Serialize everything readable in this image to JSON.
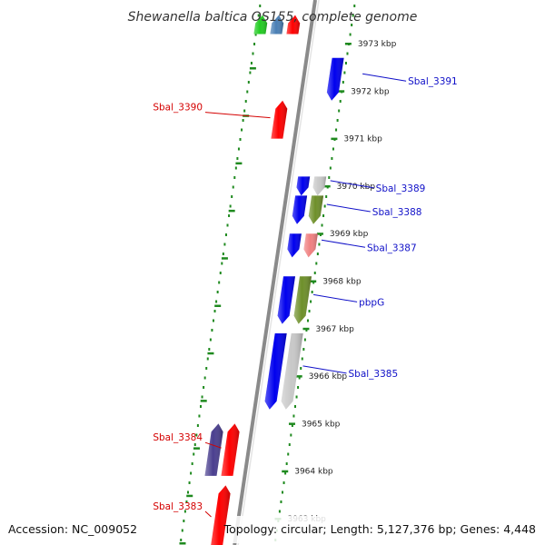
{
  "title": "Shewanella baltica OS155, complete genome",
  "accession": "Accession: NC_009052",
  "topology": "Topology: circular; Length: 5,127,376 bp; Genes: 4,448",
  "colors": {
    "backbone": "#8a8a8a",
    "tick_green": "#1f8a1f",
    "label_red": "#d40000",
    "label_blue": "#1010c8",
    "gene_red": "#ff0000",
    "gene_blue": "#0000ee",
    "gene_gray": "#c8c8c8",
    "gene_olive": "#6e8f2a",
    "gene_pink": "#f08080",
    "gene_purple": "#4a3f8f",
    "gene_green": "#22cc22",
    "gene_steel": "#4a7fb5"
  },
  "kbp_ticks": [
    {
      "label": "3973 kbp",
      "kbp": 3973
    },
    {
      "label": "3972 kbp",
      "kbp": 3972
    },
    {
      "label": "3971 kbp",
      "kbp": 3971
    },
    {
      "label": "3970 kbp",
      "kbp": 3970
    },
    {
      "label": "3969 kbp",
      "kbp": 3969
    },
    {
      "label": "3968 kbp",
      "kbp": 3968
    },
    {
      "label": "3967 kbp",
      "kbp": 3967
    },
    {
      "label": "3966 kbp",
      "kbp": 3966
    },
    {
      "label": "3965 kbp",
      "kbp": 3965
    },
    {
      "label": "3964 kbp",
      "kbp": 3964
    },
    {
      "label": "3963 kbp",
      "kbp": 3963
    }
  ],
  "genes": [
    {
      "id": "g-top-red",
      "strand": "+",
      "lane": 1,
      "start": 3973.2,
      "end": 3973.6,
      "color": "gene_red",
      "label": ""
    },
    {
      "id": "g-top-steel",
      "strand": "+",
      "lane": 2,
      "start": 3973.2,
      "end": 3973.6,
      "color": "gene_steel",
      "label": ""
    },
    {
      "id": "g-top-green",
      "strand": "+",
      "lane": 3,
      "start": 3973.2,
      "end": 3973.6,
      "color": "gene_green",
      "label": ""
    },
    {
      "id": "Sbal_3391",
      "strand": "-",
      "lane": 2,
      "start": 3971.8,
      "end": 3972.7,
      "color": "gene_blue",
      "label": "Sbal_3391",
      "labelColor": "label_blue"
    },
    {
      "id": "Sbal_3390",
      "strand": "+",
      "lane": 1,
      "start": 3971.0,
      "end": 3971.8,
      "color": "gene_red",
      "label": "Sbal_3390",
      "labelColor": "label_red"
    },
    {
      "id": "Sbal_3389",
      "strand": "-",
      "lane": 1,
      "start": 3969.8,
      "end": 3970.2,
      "color": "gene_blue",
      "label": "Sbal_3389",
      "labelColor": "label_blue"
    },
    {
      "id": "g-3389-gray",
      "strand": "-",
      "lane": 2,
      "start": 3969.8,
      "end": 3970.2,
      "color": "gene_gray",
      "label": ""
    },
    {
      "id": "Sbal_3388",
      "strand": "-",
      "lane": 1,
      "start": 3969.2,
      "end": 3969.8,
      "color": "gene_blue",
      "label": "Sbal_3388",
      "labelColor": "label_blue"
    },
    {
      "id": "g-3388-olive",
      "strand": "-",
      "lane": 2,
      "start": 3969.2,
      "end": 3969.8,
      "color": "gene_olive",
      "label": ""
    },
    {
      "id": "Sbal_3387",
      "strand": "-",
      "lane": 1,
      "start": 3968.5,
      "end": 3969.0,
      "color": "gene_blue",
      "label": "Sbal_3387",
      "labelColor": "label_blue"
    },
    {
      "id": "g-3387-pink",
      "strand": "-",
      "lane": 2,
      "start": 3968.5,
      "end": 3969.0,
      "color": "gene_pink",
      "label": ""
    },
    {
      "id": "pbpG",
      "strand": "-",
      "lane": 1,
      "start": 3967.1,
      "end": 3968.1,
      "color": "gene_blue",
      "label": "pbpG",
      "labelColor": "label_blue"
    },
    {
      "id": "g-pbpG-olive",
      "strand": "-",
      "lane": 2,
      "start": 3967.1,
      "end": 3968.1,
      "color": "gene_olive",
      "label": ""
    },
    {
      "id": "Sbal_3385",
      "strand": "-",
      "lane": 1,
      "start": 3965.3,
      "end": 3966.9,
      "color": "gene_blue",
      "label": "Sbal_3385",
      "labelColor": "label_blue"
    },
    {
      "id": "g-3385-gray",
      "strand": "-",
      "lane": 2,
      "start": 3965.3,
      "end": 3966.9,
      "color": "gene_gray",
      "label": ""
    },
    {
      "id": "Sbal_3384",
      "strand": "+",
      "lane": 1,
      "start": 3963.9,
      "end": 3965.0,
      "color": "gene_red",
      "label": "Sbal_3384",
      "labelColor": "label_red"
    },
    {
      "id": "g-3384-purple",
      "strand": "+",
      "lane": 2,
      "start": 3963.9,
      "end": 3965.0,
      "color": "gene_purple",
      "label": ""
    },
    {
      "id": "Sbal_3383",
      "strand": "+",
      "lane": 1,
      "start": 3962.3,
      "end": 3963.7,
      "color": "gene_red",
      "label": "Sbal_3383",
      "labelColor": "label_red"
    }
  ]
}
